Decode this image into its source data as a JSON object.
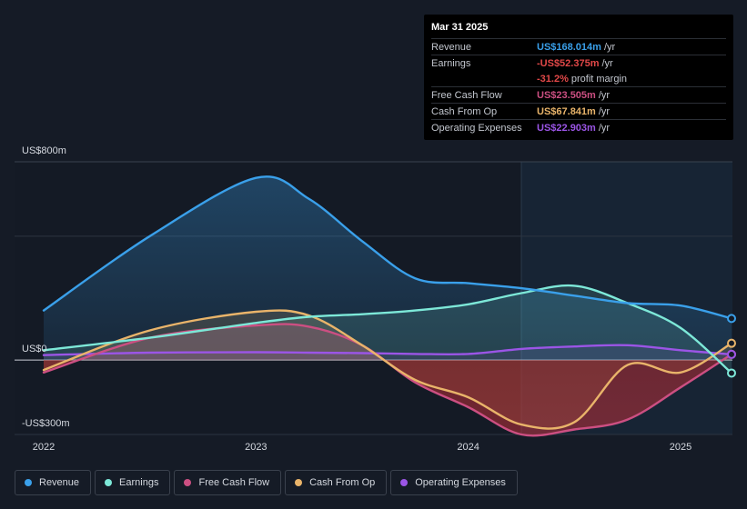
{
  "chart_data": {
    "type": "area",
    "title": "",
    "xlabel": "",
    "ylabel": "",
    "y_axis_labels": [
      "US$800m",
      "US$0",
      "-US$300m"
    ],
    "x_ticks": [
      {
        "x": 2022.0,
        "label": "2022"
      },
      {
        "x": 2023.0,
        "label": "2023"
      },
      {
        "x": 2024.0,
        "label": "2024"
      },
      {
        "x": 2025.0,
        "label": "2025"
      }
    ],
    "xlim": [
      2021.99,
      2025.24
    ],
    "ylim": [
      -300,
      800
    ],
    "forecast_start_x": 2024.25,
    "x": [
      2022.0,
      2022.5,
      2023.0,
      2023.25,
      2023.5,
      2023.75,
      2024.0,
      2024.25,
      2024.5,
      2024.75,
      2025.0,
      2025.24
    ],
    "series": [
      {
        "name": "Revenue",
        "color": "#3aa0ea",
        "values": [
          200,
          500,
          735,
          650,
          480,
          330,
          310,
          290,
          260,
          230,
          220,
          168.014
        ]
      },
      {
        "name": "Earnings",
        "color": "#7de8d8",
        "values": [
          40,
          90,
          150,
          175,
          185,
          200,
          225,
          270,
          300,
          230,
          130,
          -52.375
        ]
      },
      {
        "name": "Free Cash Flow",
        "color": "#cc4f82",
        "values": [
          -50,
          90,
          140,
          135,
          60,
          -90,
          -190,
          -300,
          -280,
          -240,
          -110,
          23.505
        ]
      },
      {
        "name": "Cash From Op",
        "color": "#e9b46a",
        "values": [
          -40,
          120,
          195,
          180,
          60,
          -80,
          -150,
          -260,
          -250,
          -20,
          -50,
          67.841
        ]
      },
      {
        "name": "Operating Expenses",
        "color": "#9b55e6",
        "values": [
          20,
          30,
          32,
          30,
          28,
          25,
          25,
          45,
          55,
          60,
          40,
          22.903
        ]
      }
    ]
  },
  "tooltip": {
    "date": "Mar 31 2025",
    "rows": [
      {
        "label": "Revenue",
        "value": "US$168.014m",
        "unit": "/yr",
        "color": "#3aa0ea"
      },
      {
        "label": "Earnings",
        "value": "-US$52.375m",
        "unit": "/yr",
        "color": "#e24848"
      },
      {
        "label": "",
        "value": "-31.2%",
        "unit": "profit margin",
        "color": "#e24848"
      },
      {
        "label": "Free Cash Flow",
        "value": "US$23.505m",
        "unit": "/yr",
        "color": "#cc4f82"
      },
      {
        "label": "Cash From Op",
        "value": "US$67.841m",
        "unit": "/yr",
        "color": "#e9b46a"
      },
      {
        "label": "Operating Expenses",
        "value": "US$22.903m",
        "unit": "/yr",
        "color": "#9b55e6"
      }
    ]
  },
  "legend": [
    {
      "label": "Revenue",
      "color": "#3aa0ea"
    },
    {
      "label": "Earnings",
      "color": "#7de8d8"
    },
    {
      "label": "Free Cash Flow",
      "color": "#cc4f82"
    },
    {
      "label": "Cash From Op",
      "color": "#e9b46a"
    },
    {
      "label": "Operating Expenses",
      "color": "#9b55e6"
    }
  ]
}
